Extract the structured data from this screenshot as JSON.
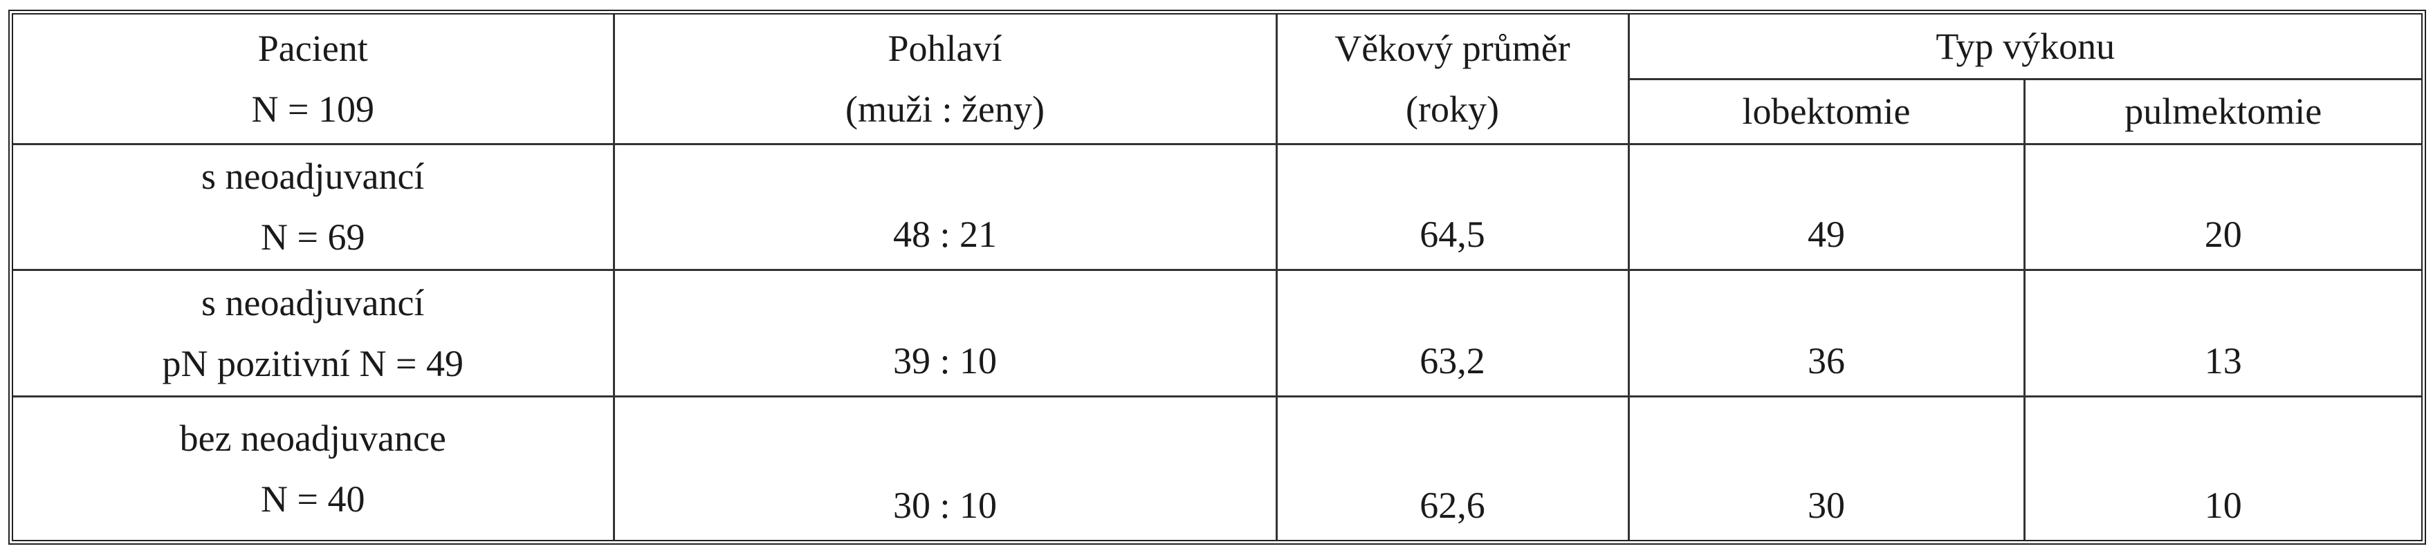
{
  "table": {
    "header": {
      "patient": [
        "Pacient",
        "N = 109"
      ],
      "sex": [
        "Pohlaví",
        "(muži : ženy)"
      ],
      "age": [
        "Věkový průměr",
        "(roky)"
      ],
      "type": "Typ výkonu",
      "lobectomy": "lobektomie",
      "pneumonectomy": "pulmektomie"
    },
    "rows": [
      {
        "label": [
          "s neoadjuvancí",
          "N = 69"
        ],
        "values": [
          "48 : 21",
          "64,5",
          "49",
          "20"
        ]
      },
      {
        "label": [
          "s neoadjuvancí",
          "pN pozitivní N = 49"
        ],
        "values": [
          "39 : 10",
          "63,2",
          "36",
          "13"
        ]
      },
      {
        "label": [
          "bez neoadjuvance",
          "N = 40"
        ],
        "values": [
          "30 : 10",
          "62,6",
          "30",
          "10"
        ]
      }
    ]
  }
}
